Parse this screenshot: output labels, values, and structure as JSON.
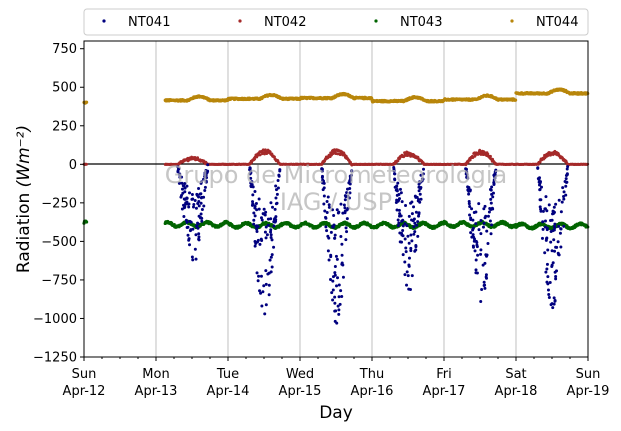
{
  "chart_data": {
    "type": "scatter",
    "xlabel": "Day",
    "ylabel": "Radiation",
    "ylabel_unit": "(Wm⁻²)",
    "ylim": [
      -1250,
      800
    ],
    "y_ticks": [
      -1250,
      -1000,
      -750,
      -500,
      -250,
      0,
      250,
      500,
      750
    ],
    "y_tick_labels": [
      "−1250",
      "−1000",
      "−750",
      "−500",
      "−250",
      "0",
      "250",
      "500",
      "750"
    ],
    "xlim": [
      "2015-04-12",
      "2015-04-19"
    ],
    "x_ticks": [
      {
        "day": "Sun",
        "date": "Apr-12"
      },
      {
        "day": "Mon",
        "date": "Apr-13"
      },
      {
        "day": "Tue",
        "date": "Apr-14"
      },
      {
        "day": "Wed",
        "date": "Apr-15"
      },
      {
        "day": "Thu",
        "date": "Apr-16"
      },
      {
        "day": "Fri",
        "date": "Apr-17"
      },
      {
        "day": "Sat",
        "date": "Apr-18"
      },
      {
        "day": "Sun",
        "date": "Apr-19"
      }
    ],
    "grid": "vertical",
    "legend_position": "top",
    "watermark": [
      "Grupo de Micrometeorologia",
      "IAG / USP"
    ],
    "series": [
      {
        "name": "NT041",
        "color": "#00007f",
        "daily_min_values": [
          null,
          -620,
          -970,
          -1030,
          -810,
          -890,
          -930
        ]
      },
      {
        "name": "NT042",
        "color": "#a52a2a",
        "night_value": 0,
        "daily_peak_values": [
          null,
          45,
          95,
          95,
          80,
          90,
          85
        ]
      },
      {
        "name": "NT043",
        "color": "#006400",
        "daily_values": [
          -380,
          -390,
          -395,
          -395,
          -395,
          -390,
          -400
        ],
        "range": [
          -430,
          -340
        ]
      },
      {
        "name": "NT044",
        "color": "#b8860b",
        "daily_values": [
          400,
          415,
          425,
          430,
          410,
          420,
          460
        ],
        "range": [
          380,
          480
        ]
      }
    ],
    "gap": [
      "2015-04-12T01:00",
      "2015-04-13T03:00"
    ]
  }
}
